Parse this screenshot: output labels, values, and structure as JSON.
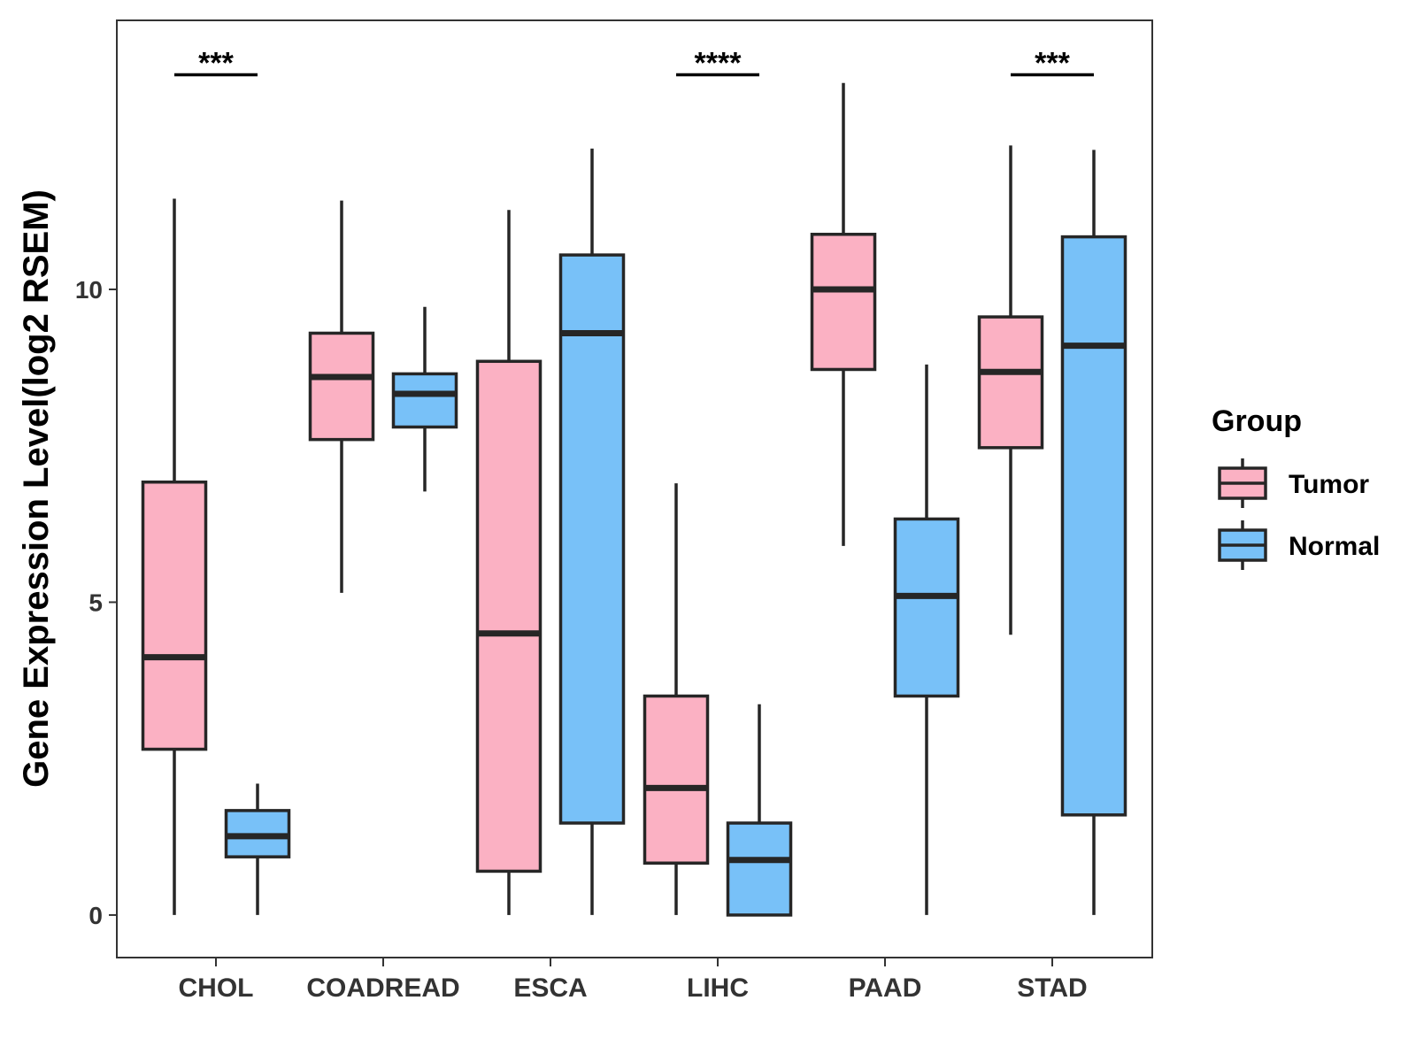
{
  "chart_data": {
    "type": "boxplot",
    "title": "",
    "xlabel": "",
    "ylabel": "Gene Expression Level(log2 RSEM)",
    "ylim": [
      -0.68,
      14.3
    ],
    "yticks": [
      0,
      5,
      10
    ],
    "ytick_labels": [
      "0",
      "5",
      "10"
    ],
    "categories": [
      "CHOL",
      "COADREAD",
      "ESCA",
      "LIHC",
      "PAAD",
      "STAD"
    ],
    "legend": {
      "title": "Group",
      "position": "right",
      "items": [
        "Tumor",
        "Normal"
      ]
    },
    "colors": {
      "Tumor": "#FBB1C3",
      "Normal": "#78C1F8",
      "outline": "#262626"
    },
    "series": [
      {
        "name": "Tumor",
        "boxes": [
          {
            "whisker_low": 0.0,
            "q1": 2.65,
            "median": 4.12,
            "q3": 6.92,
            "whisker_high": 11.45
          },
          {
            "whisker_low": 5.15,
            "q1": 7.6,
            "median": 8.6,
            "q3": 9.3,
            "whisker_high": 11.42
          },
          {
            "whisker_low": 0.0,
            "q1": 0.7,
            "median": 4.5,
            "q3": 8.85,
            "whisker_high": 11.27
          },
          {
            "whisker_low": 0.0,
            "q1": 0.83,
            "median": 2.03,
            "q3": 3.5,
            "whisker_high": 6.9
          },
          {
            "whisker_low": 5.9,
            "q1": 8.72,
            "median": 10.0,
            "q3": 10.88,
            "whisker_high": 13.3
          },
          {
            "whisker_low": 4.48,
            "q1": 7.47,
            "median": 8.68,
            "q3": 9.56,
            "whisker_high": 12.3
          }
        ]
      },
      {
        "name": "Normal",
        "boxes": [
          {
            "whisker_low": 0.0,
            "q1": 0.93,
            "median": 1.26,
            "q3": 1.67,
            "whisker_high": 2.1
          },
          {
            "whisker_low": 6.77,
            "q1": 7.8,
            "median": 8.33,
            "q3": 8.65,
            "whisker_high": 9.72
          },
          {
            "whisker_low": 0.0,
            "q1": 1.47,
            "median": 9.3,
            "q3": 10.55,
            "whisker_high": 12.25
          },
          {
            "whisker_low": 0.0,
            "q1": 0.0,
            "median": 0.88,
            "q3": 1.47,
            "whisker_high": 3.37
          },
          {
            "whisker_low": 0.0,
            "q1": 3.5,
            "median": 5.1,
            "q3": 6.33,
            "whisker_high": 8.8
          },
          {
            "whisker_low": 0.0,
            "q1": 1.6,
            "median": 9.1,
            "q3": 10.84,
            "whisker_high": 12.23
          }
        ]
      }
    ],
    "significance": [
      {
        "category": "CHOL",
        "label": "***",
        "y": 13.6
      },
      {
        "category": "LIHC",
        "label": "****",
        "y": 13.6
      },
      {
        "category": "STAD",
        "label": "***",
        "y": 13.6
      }
    ]
  }
}
